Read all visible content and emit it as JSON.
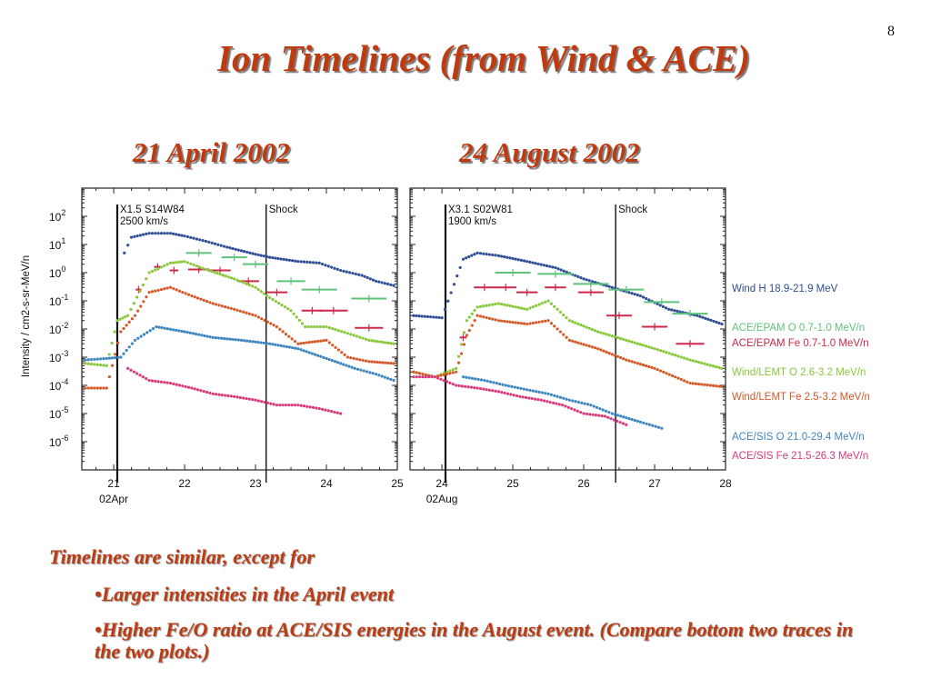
{
  "page_number": "8",
  "title": "Ion Timelines (from Wind & ACE)",
  "notes": {
    "intro": "Timelines are similar, except for",
    "bullet1": "•Larger intensities in the April event",
    "bullet2": "•Higher Fe/O ratio at ACE/SIS energies in the August event.  (Compare bottom two traces in the two plots.)"
  },
  "colors": {
    "title_text": "#c03a10",
    "wind_h": "#2e4e96",
    "epam_o": "#5ec27a",
    "epam_fe": "#cc2a48",
    "lemt_o": "#88c83a",
    "lemt_fe": "#d45a28",
    "sis_o": "#3d86bf",
    "sis_fe": "#d83a7c"
  },
  "chart_data": [
    {
      "type": "scatter",
      "title": "21 April 2002",
      "ylabel": "Intensity / cm2-s-sr-MeV/n",
      "y_scale": "log",
      "ylim": [
        1e-07,
        1000.0
      ],
      "y_ticks": [
        {
          "value": 100.0,
          "mant": "10",
          "exp": "2"
        },
        {
          "value": 10.0,
          "mant": "10",
          "exp": "1"
        },
        {
          "value": 1.0,
          "mant": "10",
          "exp": "0"
        },
        {
          "value": 0.1,
          "mant": "10",
          "exp": "-1"
        },
        {
          "value": 0.01,
          "mant": "10",
          "exp": "-2"
        },
        {
          "value": 0.001,
          "mant": "10",
          "exp": "-3"
        },
        {
          "value": 0.0001,
          "mant": "10",
          "exp": "-4"
        },
        {
          "value": 1e-05,
          "mant": "10",
          "exp": "-5"
        },
        {
          "value": 1e-06,
          "mant": "10",
          "exp": "-6"
        }
      ],
      "xlim": [
        20.55,
        25.0
      ],
      "x_ticks": [
        21,
        22,
        23,
        24,
        25
      ],
      "x_tick_labels": [
        "21",
        "22",
        "23",
        "24",
        "25"
      ],
      "x_date_label": "02Apr",
      "events": [
        {
          "x": 21.05,
          "line1": "X1.5 S14W84",
          "line2": "2500 km/s"
        },
        {
          "x": 23.15,
          "line1": "Shock",
          "line2": ""
        }
      ],
      "series": [
        {
          "name": "Wind H 18.9-21.9 MeV",
          "color_key": "wind_h",
          "style": "dots",
          "x": [
            21.15,
            21.25,
            21.5,
            21.8,
            22.0,
            22.3,
            22.6,
            23.0,
            23.2,
            23.6,
            23.9,
            24.2,
            24.5,
            24.7,
            24.95
          ],
          "y": [
            5,
            18,
            25,
            25,
            20,
            13,
            8,
            4.5,
            3.5,
            2.5,
            2.2,
            1.2,
            0.8,
            0.5,
            0.35
          ]
        },
        {
          "name": "ACE/EPAM O  0.7-1.0 MeV/n",
          "color_key": "epam_o",
          "style": "bars",
          "x": [
            22.2,
            22.7,
            23.0,
            23.5,
            23.9,
            24.6
          ],
          "y": [
            5,
            3.5,
            2,
            0.5,
            0.25,
            0.12
          ],
          "half_width": [
            0.18,
            0.18,
            0.18,
            0.2,
            0.25,
            0.25
          ]
        },
        {
          "name": "ACE/EPAM Fe 0.7-1.0 MeV/n",
          "color_key": "epam_fe",
          "style": "bars",
          "x": [
            21.35,
            21.62,
            21.85,
            22.2,
            22.5,
            22.9,
            23.3,
            23.8,
            24.1,
            24.6
          ],
          "y": [
            0.25,
            1.6,
            1.2,
            1.3,
            1.2,
            0.5,
            0.2,
            0.045,
            0.045,
            0.011
          ],
          "half_width": [
            0.04,
            0.05,
            0.06,
            0.15,
            0.15,
            0.15,
            0.15,
            0.15,
            0.2,
            0.2
          ]
        },
        {
          "name": "Wind/LEMT O 2.6-3.2 MeV/n",
          "color_key": "lemt_o",
          "style": "dots",
          "x": [
            20.6,
            20.9,
            21.05,
            21.2,
            21.5,
            21.8,
            22.0,
            22.3,
            22.7,
            23.0,
            23.2,
            23.5,
            23.7,
            24.0,
            24.3,
            24.6,
            24.95
          ],
          "y": [
            0.0006,
            0.0005,
            0.02,
            0.03,
            1.0,
            2.2,
            2.5,
            1.3,
            0.6,
            0.3,
            0.13,
            0.045,
            0.012,
            0.012,
            0.007,
            0.004,
            0.003
          ]
        },
        {
          "name": "Wind/LEMT Fe 2.5-3.2 MeV/n",
          "color_key": "lemt_fe",
          "style": "dots",
          "x": [
            20.6,
            20.9,
            21.1,
            21.3,
            21.5,
            21.8,
            22.1,
            22.4,
            22.7,
            23.0,
            23.3,
            23.6,
            24.0,
            24.3,
            24.6,
            24.95
          ],
          "y": [
            8e-05,
            8e-05,
            0.008,
            0.03,
            0.2,
            0.3,
            0.15,
            0.08,
            0.05,
            0.03,
            0.012,
            0.003,
            0.004,
            0.001,
            0.0007,
            0.0006
          ]
        },
        {
          "name": "ACE/SIS O 21.0-29.4 MeV/n",
          "color_key": "sis_o",
          "style": "dots",
          "x": [
            20.6,
            20.9,
            21.1,
            21.3,
            21.6,
            22.0,
            22.4,
            22.8,
            23.2,
            23.6,
            24.0,
            24.4,
            24.7,
            24.95
          ],
          "y": [
            0.0008,
            0.0009,
            0.001,
            0.004,
            0.012,
            0.008,
            0.005,
            0.004,
            0.003,
            0.002,
            0.0009,
            0.0004,
            0.00025,
            0.00015
          ]
        },
        {
          "name": "ACE/SIS Fe 21.5-26.3 MeV/n",
          "color_key": "sis_fe",
          "style": "dots",
          "x": [
            21.2,
            21.5,
            21.8,
            22.1,
            22.4,
            22.7,
            23.0,
            23.3,
            23.6,
            23.9,
            24.2
          ],
          "y": [
            0.0004,
            0.00015,
            0.00012,
            8e-05,
            5e-05,
            4e-05,
            3e-05,
            2e-05,
            2e-05,
            1.5e-05,
            1e-05
          ]
        }
      ]
    },
    {
      "type": "scatter",
      "title": "24 August 2002",
      "y_scale": "log",
      "ylim": [
        1e-07,
        1000.0
      ],
      "xlim": [
        23.55,
        28.0
      ],
      "x_ticks": [
        24,
        25,
        26,
        27,
        28
      ],
      "x_tick_labels": [
        "24",
        "25",
        "26",
        "27",
        "28"
      ],
      "x_date_label": "02Aug",
      "events": [
        {
          "x": 24.05,
          "line1": "X3.1 S02W81",
          "line2": "1900 km/s"
        },
        {
          "x": 26.45,
          "line1": "Shock",
          "line2": ""
        }
      ],
      "series": [
        {
          "name": "Wind H 18.9-21.9 MeV",
          "color_key": "wind_h",
          "style": "dots",
          "x": [
            23.6,
            24.0,
            24.3,
            24.5,
            24.8,
            25.2,
            25.6,
            26.0,
            26.4,
            26.8,
            27.2,
            27.6,
            27.95
          ],
          "y": [
            0.03,
            0.025,
            3,
            5,
            4,
            2.5,
            1.5,
            0.6,
            0.3,
            0.15,
            0.05,
            0.03,
            0.015
          ]
        },
        {
          "name": "ACE/EPAM O  0.7-1.0 MeV/n",
          "color_key": "epam_o",
          "style": "bars",
          "x": [
            25.0,
            25.6,
            26.1,
            26.6,
            27.1,
            27.5
          ],
          "y": [
            1.0,
            0.9,
            0.4,
            0.25,
            0.09,
            0.035
          ],
          "half_width": [
            0.25,
            0.25,
            0.25,
            0.25,
            0.25,
            0.25
          ]
        },
        {
          "name": "ACE/EPAM Fe 0.7-1.0 MeV/n",
          "color_key": "epam_fe",
          "style": "bars",
          "x": [
            24.3,
            24.6,
            24.9,
            25.2,
            25.6,
            26.1,
            26.5,
            27.0,
            27.5
          ],
          "y": [
            0.005,
            0.3,
            0.3,
            0.2,
            0.3,
            0.2,
            0.03,
            0.012,
            0.003
          ],
          "half_width": [
            0.05,
            0.15,
            0.15,
            0.15,
            0.15,
            0.18,
            0.18,
            0.18,
            0.2
          ]
        },
        {
          "name": "Wind/LEMT O 2.6-3.2 MeV/n",
          "color_key": "lemt_o",
          "style": "dots",
          "x": [
            23.6,
            23.9,
            24.2,
            24.35,
            24.5,
            24.8,
            25.2,
            25.5,
            25.8,
            26.2,
            26.6,
            27.0,
            27.5,
            27.95
          ],
          "y": [
            0.0003,
            0.0002,
            0.0004,
            0.02,
            0.06,
            0.08,
            0.05,
            0.1,
            0.02,
            0.008,
            0.004,
            0.002,
            0.0008,
            0.0004
          ]
        },
        {
          "name": "Wind/LEMT Fe 2.5-3.2 MeV/n",
          "color_key": "lemt_fe",
          "style": "dots",
          "x": [
            23.6,
            23.9,
            24.2,
            24.35,
            24.5,
            24.8,
            25.2,
            25.5,
            25.8,
            26.2,
            26.6,
            27.0,
            27.5,
            27.95
          ],
          "y": [
            0.0003,
            0.0002,
            0.0003,
            0.006,
            0.03,
            0.02,
            0.015,
            0.02,
            0.004,
            0.002,
            0.0008,
            0.0004,
            0.00012,
            9e-05
          ]
        },
        {
          "name": "ACE/SIS O 21.0-29.4 MeV/n",
          "color_key": "sis_o",
          "style": "dots",
          "x": [
            24.3,
            24.6,
            24.9,
            25.2,
            25.5,
            25.8,
            26.1,
            26.4,
            26.8,
            27.1
          ],
          "y": [
            0.0002,
            0.00015,
            0.0001,
            7e-05,
            5e-05,
            3e-05,
            2e-05,
            1e-05,
            5e-06,
            3e-06
          ]
        },
        {
          "name": "ACE/SIS Fe 21.5-26.3 MeV/n",
          "color_key": "sis_fe",
          "style": "dots",
          "x": [
            23.6,
            23.9,
            24.2,
            24.5,
            24.8,
            25.1,
            25.4,
            25.7,
            26.0,
            26.3,
            26.6
          ],
          "y": [
            0.0002,
            0.0002,
            0.0001,
            8e-05,
            6e-05,
            4e-05,
            3e-05,
            2e-05,
            1e-05,
            8e-06,
            4e-06
          ]
        }
      ]
    }
  ]
}
